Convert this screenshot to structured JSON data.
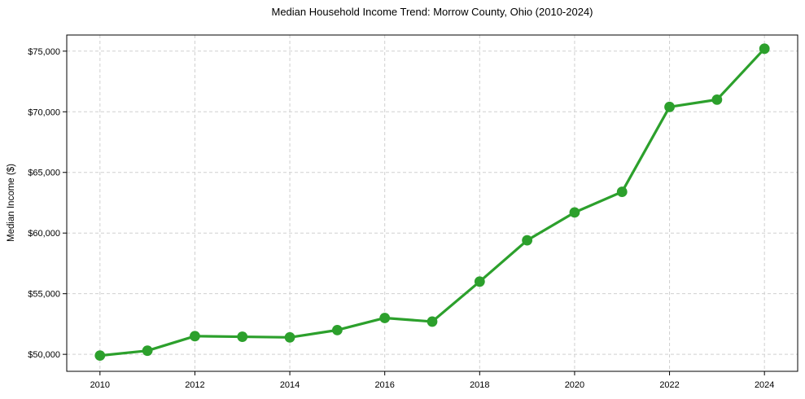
{
  "chart_data": {
    "type": "line",
    "title": "Median Household Income Trend: Morrow County, Ohio (2010-2024)",
    "xlabel": "",
    "ylabel": "Median Income ($)",
    "series_name": "Median Household Income",
    "x": [
      2010,
      2011,
      2012,
      2013,
      2014,
      2015,
      2016,
      2017,
      2018,
      2019,
      2020,
      2021,
      2022,
      2023,
      2024
    ],
    "values": [
      49900,
      50300,
      51500,
      51450,
      51400,
      52000,
      53000,
      52700,
      56000,
      59400,
      61700,
      63400,
      70400,
      71000,
      75200
    ],
    "x_ticks": [
      2010,
      2012,
      2014,
      2016,
      2018,
      2020,
      2022,
      2024
    ],
    "x_tick_labels": [
      "2010",
      "2012",
      "2014",
      "2016",
      "2018",
      "2020",
      "2022",
      "2024"
    ],
    "y_ticks": [
      50000,
      55000,
      60000,
      65000,
      70000,
      75000
    ],
    "y_tick_labels": [
      "$50,000",
      "$55,000",
      "$60,000",
      "$65,000",
      "$70,000",
      "$75,000"
    ],
    "xlim": [
      2009.3,
      2024.7
    ],
    "ylim": [
      48600,
      76330
    ],
    "grid": "dashed-both-axes",
    "legend": "none",
    "line_color": "#2ca02c",
    "grid_color": "#d0d0d0",
    "axis_color": "#000000",
    "marker": "circle"
  }
}
